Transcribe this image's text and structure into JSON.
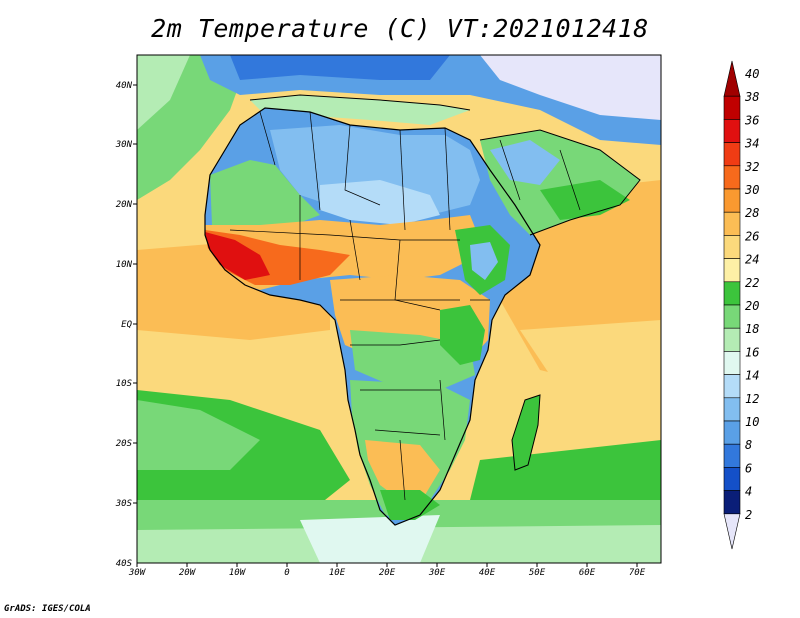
{
  "title": "2m Temperature (C) VT:2021012418",
  "footer": "GrADS: IGES/COLA",
  "map": {
    "lon_labels": [
      "30W",
      "20W",
      "10W",
      "0",
      "10E",
      "20E",
      "30E",
      "40E",
      "50E",
      "60E",
      "70E"
    ],
    "lat_labels": [
      "40N",
      "30N",
      "20N",
      "10N",
      "EQ",
      "10S",
      "20S",
      "30S",
      "40S"
    ]
  },
  "colorbar": {
    "labels": [
      "40",
      "38",
      "36",
      "34",
      "32",
      "30",
      "28",
      "26",
      "24",
      "22",
      "20",
      "18",
      "16",
      "14",
      "12",
      "10",
      "8",
      "6",
      "4",
      "2"
    ],
    "colors": [
      "#a00000",
      "#c00000",
      "#e01010",
      "#f03c14",
      "#f76a1c",
      "#fa9930",
      "#fbbd55",
      "#fbd97c",
      "#fdf0a6",
      "#3cc43c",
      "#78d878",
      "#b4ecb4",
      "#e0f8f0",
      "#b4dcf8",
      "#82bef0",
      "#5aa0e6",
      "#3278dc",
      "#1450c8",
      "#0a1e78",
      "#e6e6fa"
    ]
  }
}
